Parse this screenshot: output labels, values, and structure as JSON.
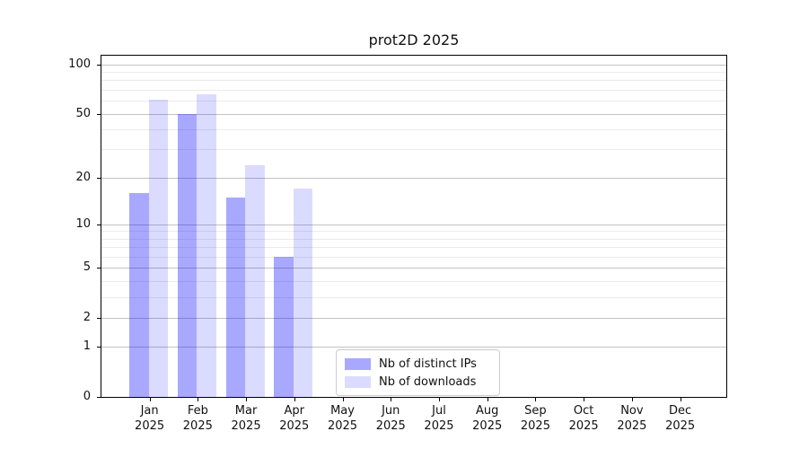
{
  "window": {
    "background": "#ffffff"
  },
  "colors": {
    "axis": "#000000",
    "text": "#111111",
    "grid_major": "#c3c3c3",
    "grid_minor": "#ebebeb",
    "legend_border": "#cccccc",
    "ips_bar_on_white": "#a8a8fc",
    "downloads_bar_on_white": "#dbdbfc"
  },
  "chart_data": {
    "type": "bar",
    "title": "prot2D 2025",
    "categories": [
      "Jan",
      "Feb",
      "Mar",
      "Apr",
      "May",
      "Jun",
      "Jul",
      "Aug",
      "Sep",
      "Oct",
      "Nov",
      "Dec"
    ],
    "year_label": "2025",
    "series": [
      {
        "name": "Nb of distinct IPs",
        "values": [
          16,
          50,
          15,
          6,
          0,
          0,
          0,
          0,
          0,
          0,
          0,
          0
        ],
        "color": "rgba(0,0,255,0.34)"
      },
      {
        "name": "Nb of downloads",
        "values": [
          61,
          66,
          24,
          17,
          0,
          0,
          0,
          0,
          0,
          0,
          0,
          0
        ],
        "color": "rgba(0,0,255,0.14)"
      }
    ],
    "yticks": [
      0,
      1,
      2,
      5,
      10,
      20,
      50,
      100
    ],
    "yminor_ticks": [
      3,
      4,
      6,
      7,
      8,
      9,
      30,
      40,
      60,
      70,
      80,
      90
    ],
    "scale": "log10(1+v)",
    "ymax": 113,
    "ylim": [
      0,
      113
    ],
    "grid": "horizontal",
    "legend_position": "lower-center"
  }
}
